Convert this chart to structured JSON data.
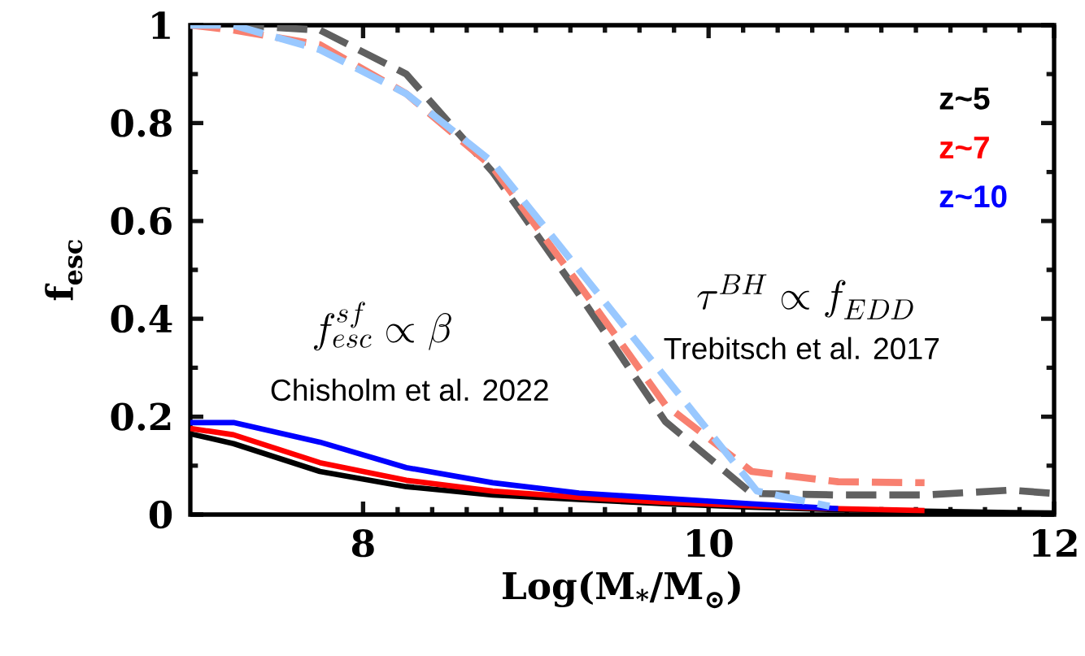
{
  "chart_data": {
    "type": "line",
    "xlabel": "Log(M$_{*}$/M$_{⊙}$)",
    "ylabel": "f$_{esc}$",
    "xlim": [
      7,
      12
    ],
    "ylim": [
      0,
      1
    ],
    "xticks": [
      8,
      10,
      12
    ],
    "yticks": [
      0,
      0.2,
      0.4,
      0.6,
      0.8,
      1
    ],
    "legend": "top right",
    "marker": "none",
    "grid": false,
    "annotations": [
      "f^{sf}_{esc} \\propto \\beta",
      "Chisholm et al. 2022",
      "\\tau^{BH} \\propto f_{EDD}",
      "Trebitsch et al. 2017"
    ],
    "series": [
      {
        "name": "z~5",
        "color": "#000000",
        "line_style": "solid",
        "x": [
          7,
          7.25,
          7.75,
          8.25,
          8.75,
          9.25,
          9.75,
          10.25,
          10.75,
          11.25,
          11.75,
          12
        ],
        "values": [
          0.165,
          0.145,
          0.088,
          0.057,
          0.04,
          0.031,
          0.022,
          0.015,
          0.01,
          0.007,
          0.004,
          0.003
        ]
      },
      {
        "name": "z~7",
        "color": "#ff0000",
        "line_style": "solid",
        "x": [
          7,
          7.25,
          7.75,
          8.25,
          8.75,
          9.25,
          9.75,
          10.25,
          10.75,
          11.25
        ],
        "values": [
          0.176,
          0.163,
          0.106,
          0.07,
          0.048,
          0.035,
          0.025,
          0.018,
          0.012,
          0.008
        ]
      },
      {
        "name": "z~10",
        "color": "#0000ff",
        "line_style": "solid",
        "x": [
          7,
          7.25,
          7.75,
          8.25,
          8.75,
          9.25,
          9.75,
          10.25,
          10.75
        ],
        "values": [
          0.188,
          0.188,
          0.148,
          0.096,
          0.065,
          0.044,
          0.033,
          0.022,
          0.012
        ]
      },
      {
        "color": "#606060",
        "line_style": "dashed",
        "x": [
          7,
          7.25,
          7.75,
          8.25,
          8.75,
          9.25,
          9.75,
          10.25,
          10.75,
          11.25,
          11.75,
          12
        ],
        "values": [
          1.0,
          1.0,
          0.99,
          0.9,
          0.7,
          0.45,
          0.19,
          0.043,
          0.04,
          0.04,
          0.05,
          0.043
        ]
      },
      {
        "color": "#f88070",
        "line_style": "dashed",
        "x": [
          7,
          7.25,
          7.75,
          8.25,
          8.75,
          9.25,
          9.75,
          10.25,
          10.75,
          11.25
        ],
        "values": [
          1.0,
          0.99,
          0.96,
          0.86,
          0.71,
          0.47,
          0.224,
          0.088,
          0.067,
          0.065
        ]
      },
      {
        "color": "#99c8ff",
        "line_style": "dashed",
        "x": [
          7,
          7.25,
          7.75,
          8.25,
          8.75,
          9.25,
          9.75,
          10.28,
          10.7
        ],
        "values": [
          1.0,
          1.0,
          0.95,
          0.86,
          0.72,
          0.5,
          0.28,
          0.048,
          0.017
        ]
      }
    ]
  }
}
